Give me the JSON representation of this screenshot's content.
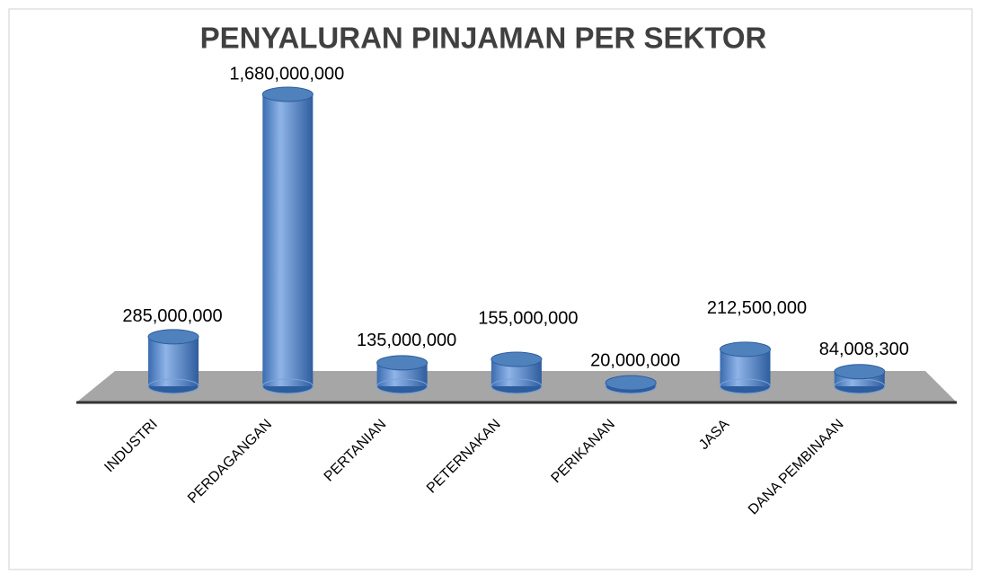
{
  "chart_data": {
    "type": "bar3d",
    "title": "PENYALURAN PINJAMAN PER SEKTOR",
    "categories": [
      "INDUSTRI",
      "PERDAGANGAN",
      "PERTANIAN",
      "PETERNAKAN",
      "PERIKANAN",
      "JASA",
      "DANA PEMBINAAN"
    ],
    "values": [
      285000000,
      1680000000,
      135000000,
      155000000,
      20000000,
      212500000,
      84008300
    ],
    "value_labels": [
      "285,000,000",
      "1,680,000,000",
      "135,000,000",
      "155,000,000",
      "20,000,000",
      "212,500,000",
      "84,008,300"
    ],
    "color": "#4f81bd"
  }
}
